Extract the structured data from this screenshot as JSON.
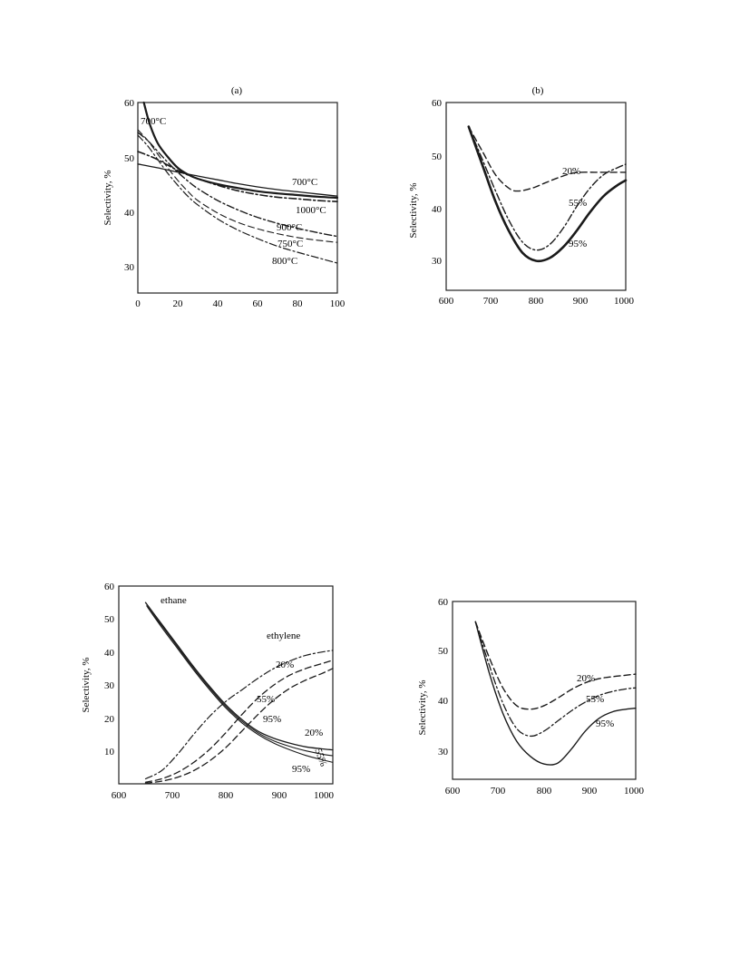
{
  "chart_data": [
    {
      "type": "line",
      "title": "(a)",
      "xlabel": "",
      "ylabel": "Selectivity, %",
      "xlim": [
        0,
        100
      ],
      "ylim": [
        25,
        60
      ],
      "xticks": [
        "0",
        "20",
        "40",
        "60",
        "80",
        "100"
      ],
      "yticks": [
        "30",
        "40",
        "50",
        "60"
      ],
      "grid": false,
      "series": [
        {
          "name": "700°C",
          "style": "solid",
          "width": 2.2,
          "x": [
            3,
            6,
            10,
            15,
            20,
            25,
            30,
            40,
            50,
            60,
            70,
            80,
            90,
            100
          ],
          "y": [
            60,
            56,
            52.5,
            50,
            48,
            46.8,
            46,
            45,
            44.3,
            43.7,
            43.3,
            43,
            42.7,
            42.5
          ]
        },
        {
          "name": "700°C",
          "style": "solid",
          "width": 1.3,
          "x": [
            0,
            10,
            20,
            30,
            40,
            50,
            60,
            70,
            80,
            90,
            100
          ],
          "y": [
            48.7,
            48,
            47.2,
            46.5,
            45.8,
            45.1,
            44.5,
            44,
            43.6,
            43.2,
            42.8
          ]
        },
        {
          "name": "1000°C",
          "style": "dashdot",
          "width": 1.6,
          "x": [
            0,
            5,
            10,
            15,
            20,
            25,
            30,
            40,
            50,
            60,
            70,
            80,
            90,
            100
          ],
          "y": [
            51,
            50.3,
            49.5,
            48.5,
            47.5,
            46.7,
            46,
            44.8,
            43.8,
            43.1,
            42.6,
            42.3,
            42,
            41.8
          ]
        },
        {
          "name": "900°C",
          "style": "dashdot",
          "width": 1.4,
          "x": [
            0,
            5,
            10,
            15,
            20,
            25,
            30,
            40,
            50,
            60,
            70,
            80,
            90,
            100
          ],
          "y": [
            54.5,
            53,
            51,
            49,
            47.2,
            45.6,
            44.2,
            42,
            40.3,
            38.9,
            37.8,
            36.9,
            36.1,
            35.4
          ]
        },
        {
          "name": "750°C",
          "style": "dashed",
          "width": 1.1,
          "x": [
            0,
            5,
            10,
            15,
            20,
            25,
            30,
            40,
            50,
            60,
            70,
            80,
            90,
            100
          ],
          "y": [
            55,
            53,
            50.5,
            48,
            45.7,
            43.7,
            42,
            39.7,
            38,
            36.8,
            35.9,
            35.2,
            34.7,
            34.3
          ]
        },
        {
          "name": "800°C",
          "style": "dashdot",
          "width": 1.2,
          "x": [
            0,
            5,
            10,
            15,
            20,
            25,
            30,
            40,
            50,
            60,
            70,
            80,
            90,
            100
          ],
          "y": [
            54,
            52,
            49.5,
            47,
            44.8,
            42.8,
            41.2,
            38.6,
            36.6,
            35,
            33.6,
            32.5,
            31.5,
            30.5
          ]
        }
      ],
      "annotations": [
        "700°C",
        "700°C",
        "1000°C",
        "900°C",
        "750°C",
        "800°C"
      ]
    },
    {
      "type": "line",
      "title": "(b)",
      "xlabel": "",
      "ylabel": "Selectivity, %",
      "xlim": [
        600,
        1000
      ],
      "ylim": [
        25,
        60
      ],
      "xticks": [
        "600",
        "700",
        "800",
        "900",
        "1000"
      ],
      "yticks": [
        "30",
        "40",
        "50",
        "60"
      ],
      "grid": false,
      "series": [
        {
          "name": "20%",
          "style": "dashed",
          "width": 1.4,
          "x": [
            650,
            680,
            710,
            740,
            760,
            790,
            820,
            850,
            880,
            900,
            930,
            960,
            1000
          ],
          "y": [
            55.5,
            51,
            46.5,
            44,
            43.5,
            44,
            45,
            46,
            46.8,
            47,
            47,
            47,
            47
          ]
        },
        {
          "name": "55%",
          "style": "dashdot",
          "width": 1.4,
          "x": [
            650,
            680,
            710,
            740,
            770,
            800,
            830,
            860,
            890,
            920,
            950,
            980,
            1000
          ],
          "y": [
            55.5,
            49.5,
            43.5,
            38,
            34,
            32.5,
            33.5,
            36.5,
            40.5,
            44,
            46.5,
            47.8,
            48.5
          ]
        },
        {
          "name": "95%",
          "style": "solid",
          "width": 2.6,
          "x": [
            650,
            680,
            710,
            740,
            770,
            800,
            830,
            860,
            890,
            920,
            950,
            980,
            1000
          ],
          "y": [
            55.5,
            48.5,
            41.5,
            36,
            32,
            30.5,
            31,
            33,
            36,
            39.5,
            42.5,
            44.5,
            45.5
          ]
        }
      ],
      "annotations": [
        "20%",
        "55%",
        "95%"
      ]
    },
    {
      "type": "line",
      "title": "",
      "xlabel": "",
      "ylabel": "Selectivity, %",
      "xlim": [
        600,
        1000
      ],
      "ylim": [
        0,
        60
      ],
      "xticks": [
        "600",
        "700",
        "800",
        "900",
        "1000"
      ],
      "yticks": [
        "10",
        "20",
        "30",
        "40",
        "50",
        "60"
      ],
      "grid": false,
      "series": [
        {
          "name": "ethane",
          "style": "solid",
          "width": 1.3,
          "x": [
            650,
            680,
            710,
            740,
            770,
            800,
            830,
            860,
            890,
            920,
            950,
            980,
            1000
          ],
          "y": [
            55,
            48.5,
            42,
            35.5,
            29.5,
            24,
            19.5,
            16,
            13.8,
            12.3,
            11.2,
            10.6,
            10.3
          ]
        },
        {
          "name": "ethane",
          "style": "solid",
          "width": 1.1,
          "x": [
            652,
            680,
            710,
            740,
            770,
            800,
            830,
            860,
            890,
            920,
            950,
            980,
            1000
          ],
          "y": [
            54,
            48,
            41.5,
            35,
            29,
            23.5,
            19,
            15.5,
            13,
            11.3,
            10,
            9,
            8.5
          ]
        },
        {
          "name": "ethane",
          "style": "solid",
          "width": 1.1,
          "x": [
            654,
            680,
            710,
            740,
            770,
            800,
            830,
            860,
            890,
            920,
            950,
            980,
            1000
          ],
          "y": [
            53.5,
            47.5,
            41,
            34.5,
            28.5,
            23,
            18.5,
            15,
            12.3,
            10.3,
            8.6,
            7.3,
            6.5
          ]
        },
        {
          "name": "ethylene 20%",
          "style": "dashdot",
          "width": 1.2,
          "x": [
            650,
            680,
            710,
            740,
            770,
            800,
            830,
            860,
            890,
            920,
            950,
            980,
            1000
          ],
          "y": [
            1.5,
            4,
            9,
            15,
            20.5,
            25,
            28.5,
            32,
            35,
            37.3,
            39,
            40,
            40.5
          ]
        },
        {
          "name": "ethylene 55%",
          "style": "dashed",
          "width": 1.3,
          "x": [
            650,
            680,
            710,
            740,
            770,
            800,
            830,
            860,
            890,
            920,
            950,
            980,
            1000
          ],
          "y": [
            0.5,
            1.5,
            3.5,
            6.5,
            10.5,
            15.5,
            21,
            26,
            30,
            33,
            35,
            36.5,
            37.5
          ]
        },
        {
          "name": "ethylene 95%",
          "style": "dashed",
          "width": 1.3,
          "x": [
            650,
            680,
            710,
            740,
            770,
            800,
            830,
            860,
            890,
            920,
            950,
            980,
            1000
          ],
          "y": [
            0.2,
            0.8,
            2,
            4,
            7,
            11,
            16,
            21,
            25.5,
            29,
            31.5,
            33.5,
            35
          ]
        }
      ],
      "annotations": [
        "ethane",
        "ethylene",
        "20%",
        "55%",
        "95%",
        "20%",
        "55%",
        "95%"
      ]
    },
    {
      "type": "line",
      "title": "",
      "xlabel": "",
      "ylabel": "Selectivity, %",
      "xlim": [
        600,
        1000
      ],
      "ylim": [
        25,
        60
      ],
      "xticks": [
        "600",
        "700",
        "800",
        "900",
        "1000"
      ],
      "yticks": [
        "30",
        "40",
        "50",
        "60"
      ],
      "grid": false,
      "series": [
        {
          "name": "20%",
          "style": "dashed",
          "width": 1.4,
          "x": [
            650,
            680,
            710,
            740,
            770,
            800,
            830,
            860,
            890,
            920,
            950,
            980,
            1000
          ],
          "y": [
            56,
            49,
            43,
            39.5,
            38.8,
            39.5,
            41,
            42.7,
            44,
            44.8,
            45.2,
            45.5,
            45.7
          ]
        },
        {
          "name": "55%",
          "style": "dashdot",
          "width": 1.3,
          "x": [
            650,
            680,
            710,
            740,
            770,
            800,
            830,
            860,
            890,
            920,
            950,
            980,
            1000
          ],
          "y": [
            56,
            47.5,
            40,
            35,
            33.5,
            34.5,
            36.5,
            38.5,
            40.2,
            41.5,
            42.3,
            42.8,
            43
          ]
        },
        {
          "name": "95%",
          "style": "solid",
          "width": 1.4,
          "x": [
            650,
            680,
            710,
            740,
            770,
            800,
            830,
            860,
            890,
            920,
            950,
            980,
            1000
          ],
          "y": [
            56,
            46,
            38,
            32.5,
            29.5,
            28,
            28.2,
            31,
            34.5,
            37,
            38.3,
            38.8,
            39
          ]
        }
      ],
      "annotations": [
        "20%",
        "55%",
        "95%"
      ]
    }
  ]
}
